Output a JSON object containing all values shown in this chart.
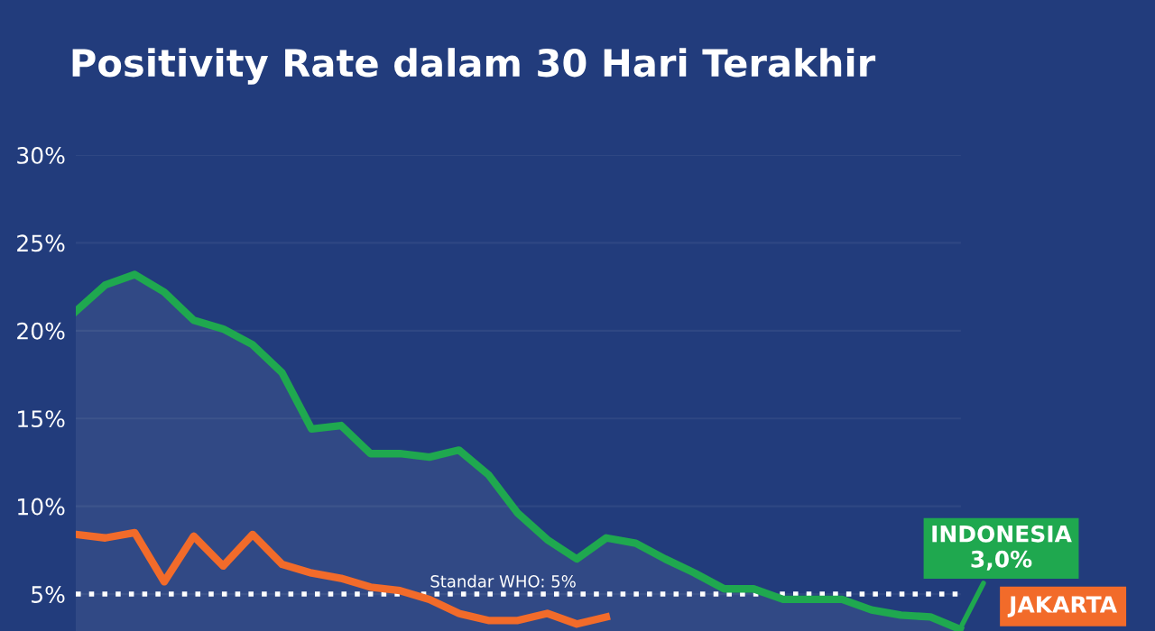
{
  "chart_data": {
    "type": "line",
    "title": "Positivity Rate dalam 30 Hari Terakhir",
    "categories": [
      null,
      null,
      null,
      null,
      null,
      null,
      null,
      null,
      null,
      null,
      null,
      null,
      null,
      null,
      null,
      null,
      null,
      null,
      null,
      null,
      null,
      null,
      null,
      null,
      null,
      null,
      null,
      null,
      null,
      null,
      null
    ],
    "series": [
      {
        "name": "INDONESIA",
        "type": "area",
        "color": "#1fa84f",
        "values": [
          21.1,
          22.6,
          23.2,
          22.2,
          20.6,
          20.1,
          19.2,
          17.6,
          14.4,
          14.6,
          13.0,
          13.0,
          12.8,
          13.2,
          11.8,
          9.6,
          8.1,
          7.0,
          8.2,
          7.9,
          7.0,
          6.2,
          5.3,
          5.3,
          4.7,
          4.7,
          4.7,
          4.1,
          3.8,
          3.7,
          3.0
        ],
        "value_labels": [
          null,
          null,
          null,
          null,
          null,
          null,
          null,
          null,
          null,
          null,
          null,
          null,
          null,
          null,
          null,
          null,
          null,
          null,
          null,
          null,
          null,
          null,
          null,
          null,
          null,
          null,
          null,
          null,
          null,
          null,
          "3,0%"
        ]
      },
      {
        "name": "JAKARTA",
        "color": "#f26b2a",
        "values": [
          8.4,
          8.2,
          8.5,
          5.7,
          8.3,
          6.6,
          8.4,
          6.7,
          6.2,
          5.9,
          5.4,
          5.2,
          4.7,
          3.9,
          3.5,
          3.5,
          3.9,
          3.3,
          3.7,
          null,
          null,
          null,
          null,
          null,
          null,
          null,
          null,
          null,
          null,
          null,
          null
        ]
      }
    ],
    "ylim": [
      2.9,
      30
    ],
    "yticks": [
      {
        "value": 5,
        "label": "5%"
      },
      {
        "value": 10,
        "label": "10%"
      },
      {
        "value": 15,
        "label": "15%"
      },
      {
        "value": 20,
        "label": "20%"
      },
      {
        "value": 25,
        "label": "25%"
      },
      {
        "value": 30,
        "label": "30%"
      }
    ],
    "grid": "y",
    "legend": false,
    "tick_labels": "y",
    "ref_lines": [
      {
        "axis": "y",
        "value": 5,
        "label": "Standar WHO: 5%",
        "color": "#ffffff",
        "line_style": "dotted"
      }
    ]
  }
}
